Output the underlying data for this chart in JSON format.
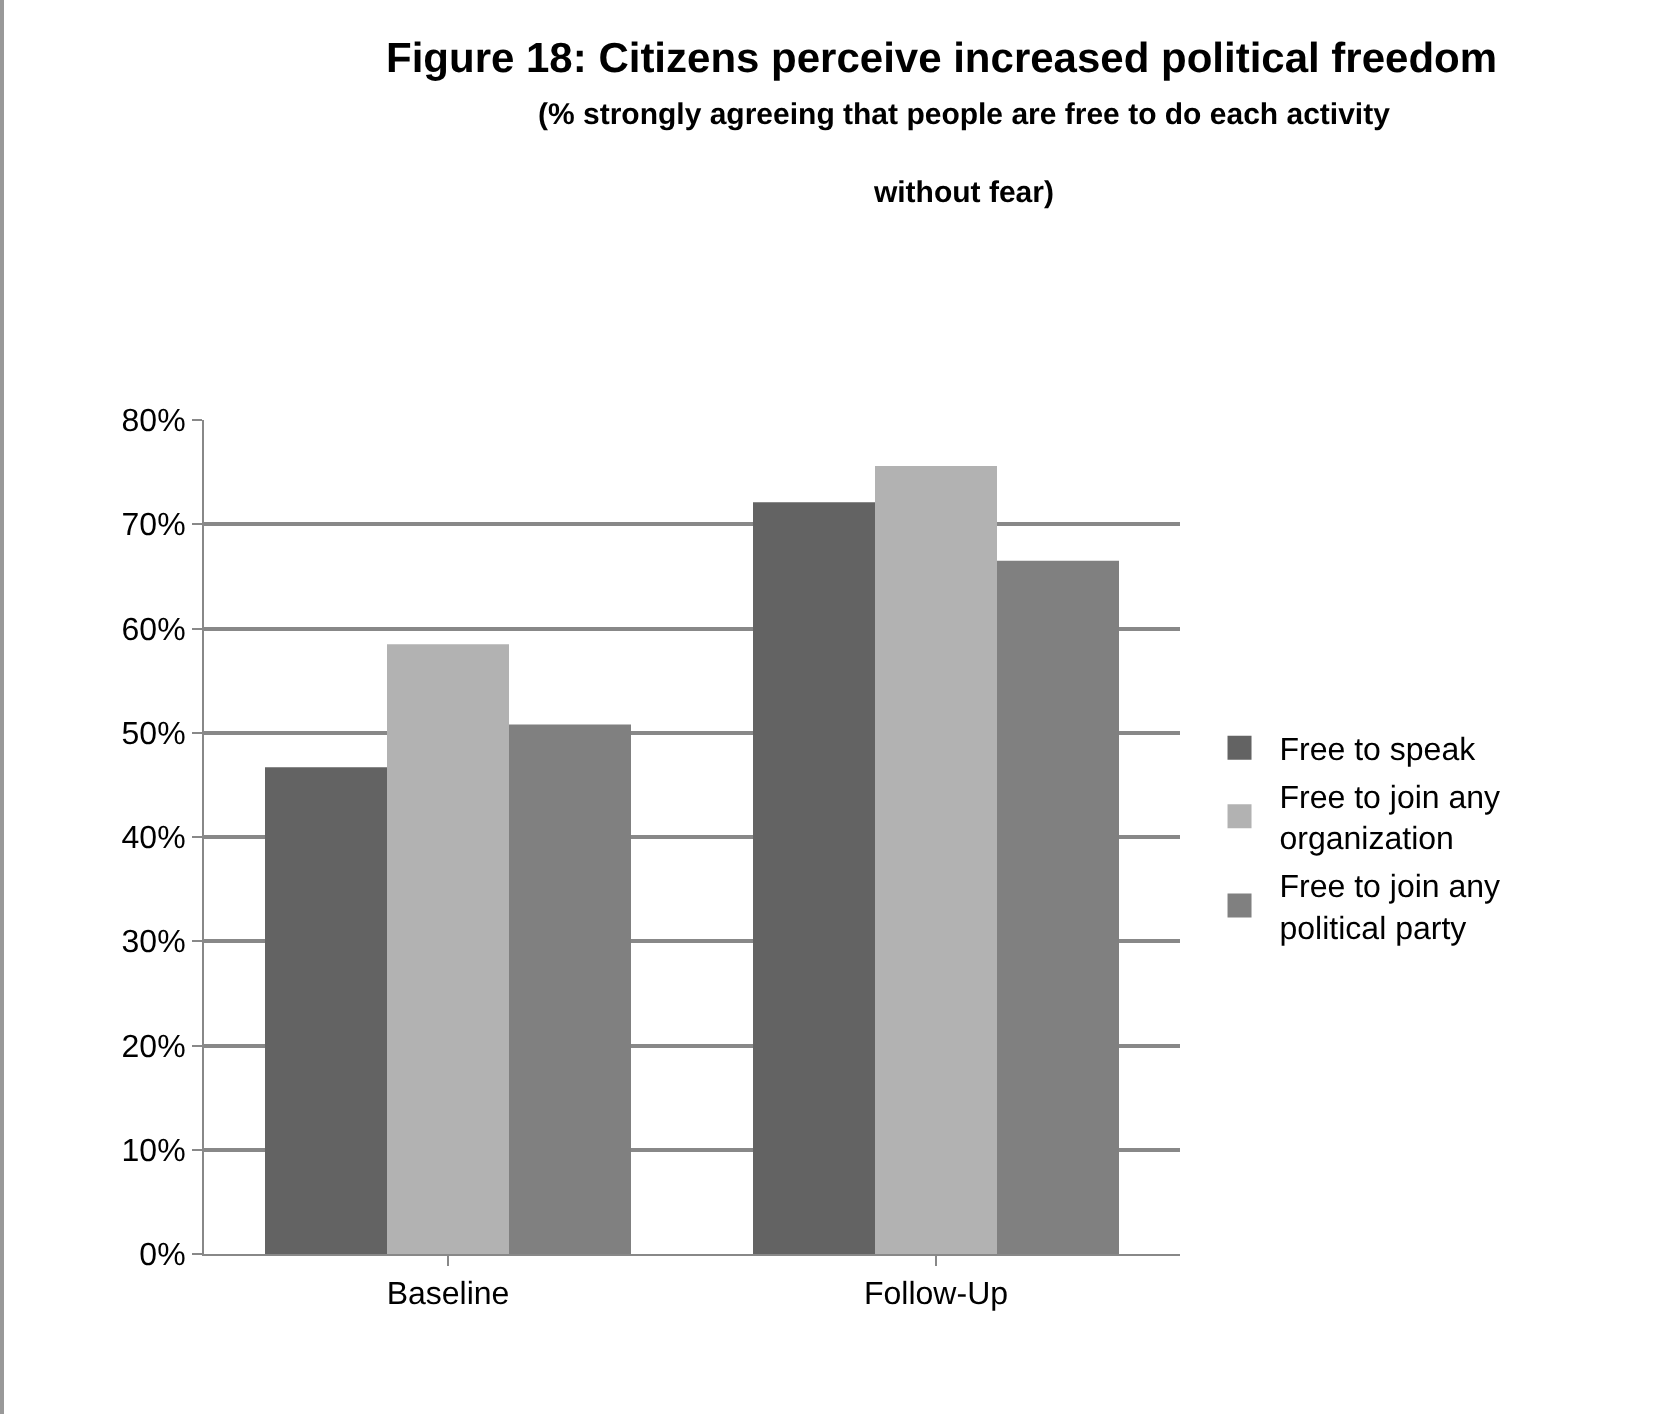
{
  "chart_data": {
    "type": "bar",
    "title": "Figure 18: Citizens perceive increased political freedom",
    "subtitle": "(% strongly agreeing that people are free to do each activity without fear)",
    "categories": [
      "Baseline",
      "Follow-Up"
    ],
    "series": [
      {
        "name": "Free to speak",
        "color": "#636363",
        "values": [
          46.7,
          72.1
        ]
      },
      {
        "name": "Free to join any organization",
        "color": "#b2b2b2",
        "values": [
          58.5,
          75.6
        ]
      },
      {
        "name": "Free to join any political party",
        "color": "#808080",
        "values": [
          50.8,
          66.5
        ]
      }
    ],
    "ylim": [
      0,
      80
    ],
    "yticks": [
      {
        "value": 0,
        "label": "0%"
      },
      {
        "value": 10,
        "label": "10%"
      },
      {
        "value": 20,
        "label": "20%"
      },
      {
        "value": 30,
        "label": "30%"
      },
      {
        "value": 40,
        "label": "40%"
      },
      {
        "value": 50,
        "label": "50%"
      },
      {
        "value": 60,
        "label": "60%"
      },
      {
        "value": 70,
        "label": "70%"
      },
      {
        "value": 80,
        "label": "80%"
      }
    ],
    "grid": "y",
    "legend": "right"
  }
}
